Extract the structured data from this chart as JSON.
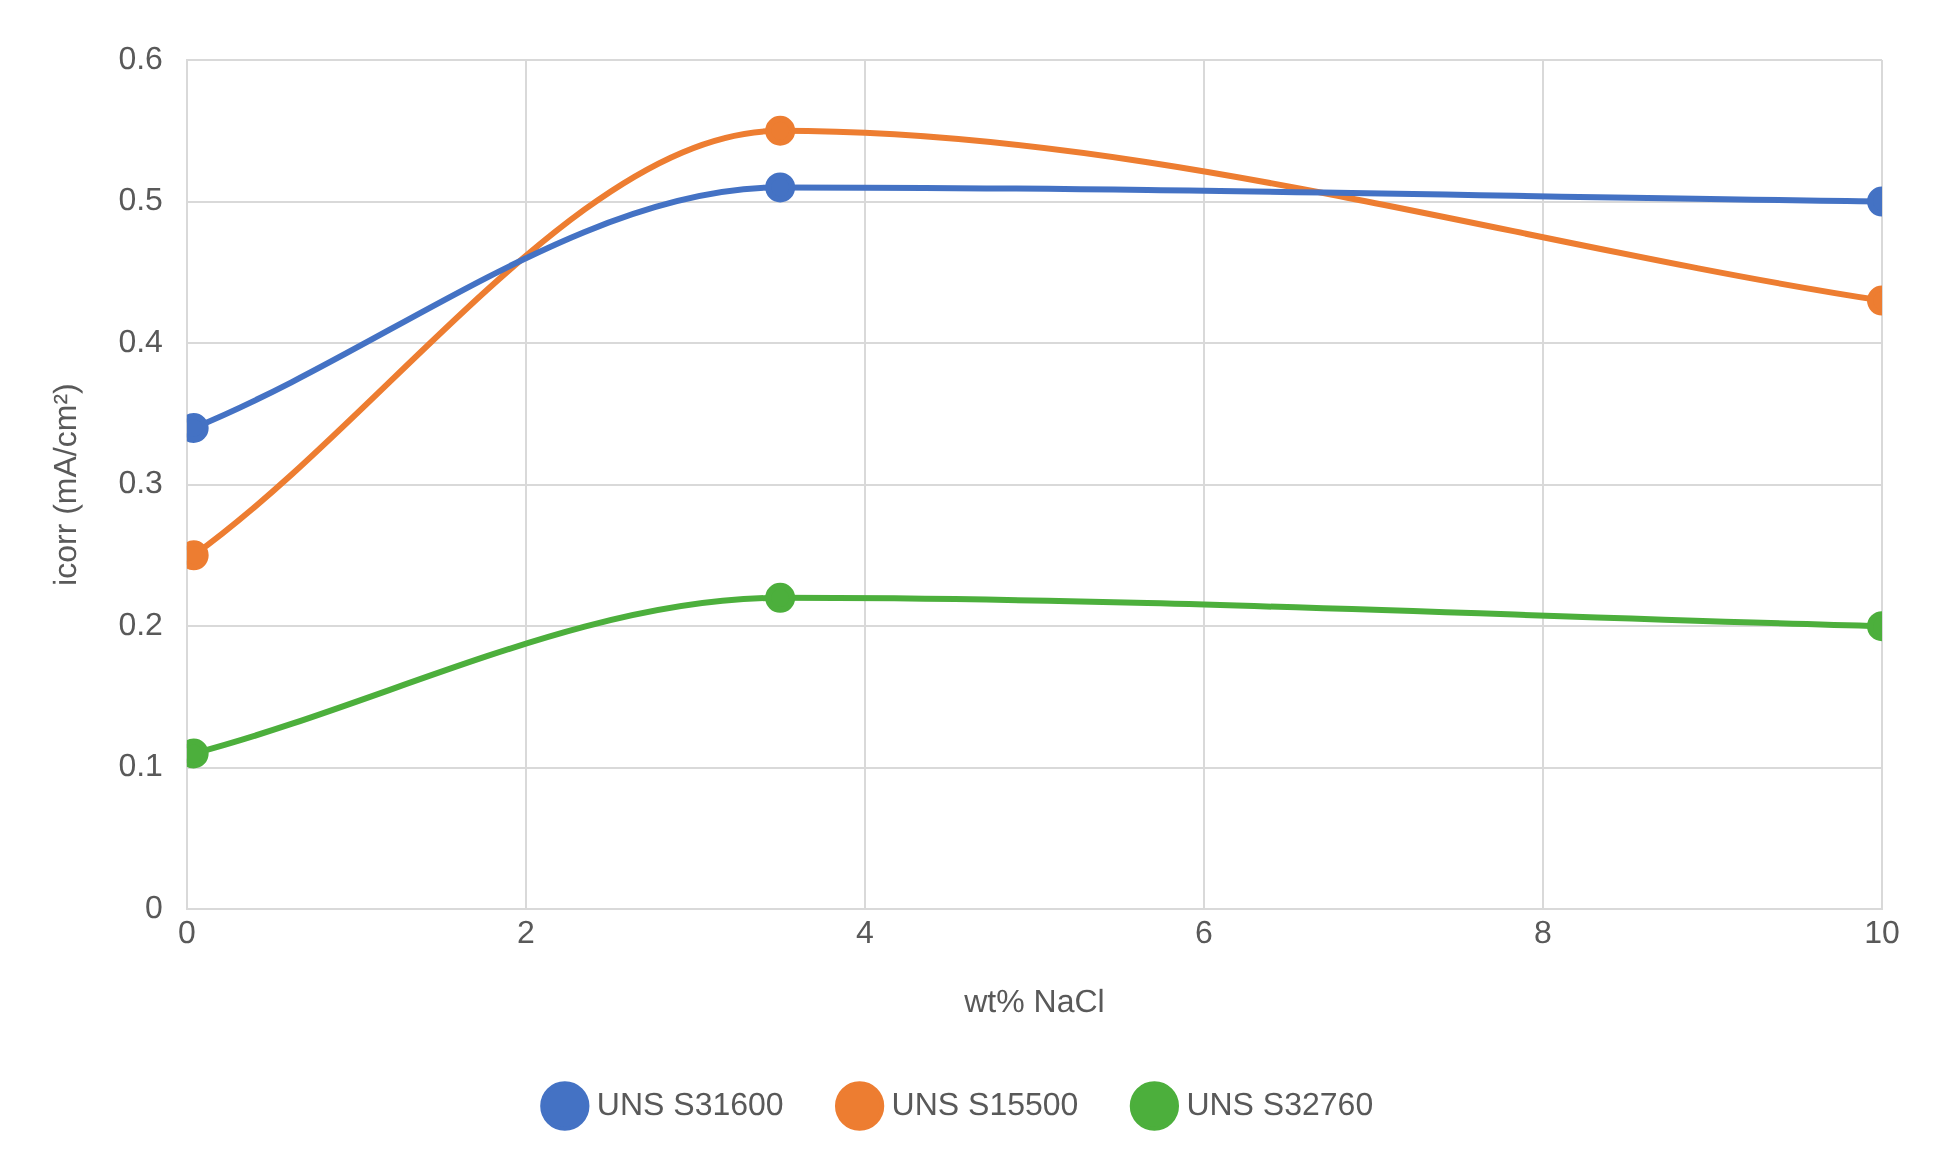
{
  "chart_data": {
    "type": "line",
    "xlabel": "wt% NaCl",
    "ylabel": "icorr (mA/cm²)",
    "x": [
      0.04,
      3.5,
      10
    ],
    "series": [
      {
        "name": "UNS S31600",
        "color": "#4472c4",
        "values": [
          0.34,
          0.51,
          0.5
        ]
      },
      {
        "name": "UNS S15500",
        "color": "#ed7d31",
        "values": [
          0.25,
          0.55,
          0.43
        ]
      },
      {
        "name": "UNS S32760",
        "color": "#4caf3c",
        "values": [
          0.11,
          0.22,
          0.2
        ]
      }
    ],
    "xlim": [
      0,
      10
    ],
    "xticks": [
      0,
      2,
      4,
      6,
      8,
      10
    ],
    "ylim": [
      0,
      0.6
    ],
    "yticks": [
      0,
      0.1,
      0.2,
      0.3,
      0.4,
      0.5,
      0.6
    ],
    "grid": true,
    "legend": "bottom",
    "marker": "circle",
    "line_style": "solid"
  }
}
